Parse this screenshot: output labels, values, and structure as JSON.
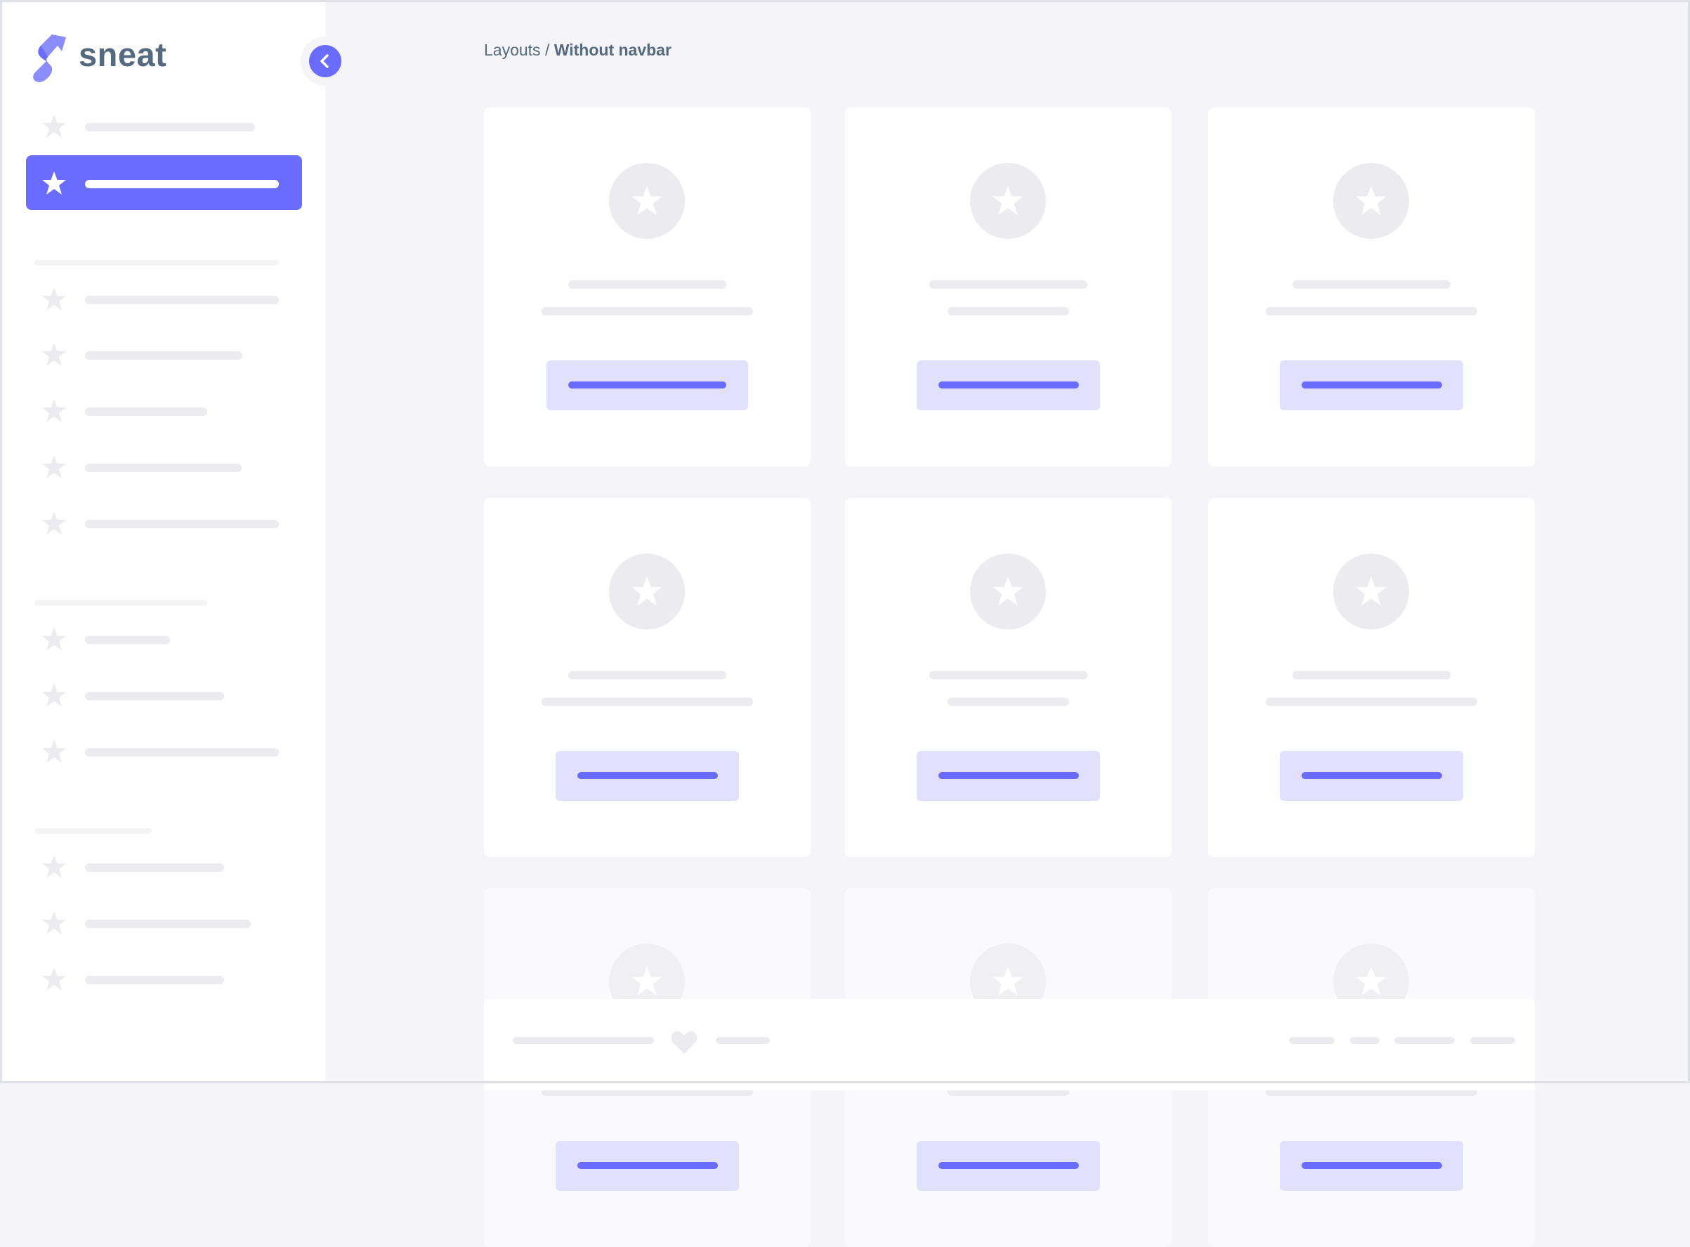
{
  "app": {
    "logo_text": "sneat",
    "brand_color": "#696cff",
    "text_color": "#566a7f"
  },
  "breadcrumb": {
    "parent": "Layouts",
    "separator": " / ",
    "current": "Without navbar"
  },
  "sidebar": {
    "active_index": 1,
    "toggle_icon": "chevron-left-icon",
    "item_icon": "star-icon"
  },
  "footer": {
    "icon": "heart-icon"
  }
}
